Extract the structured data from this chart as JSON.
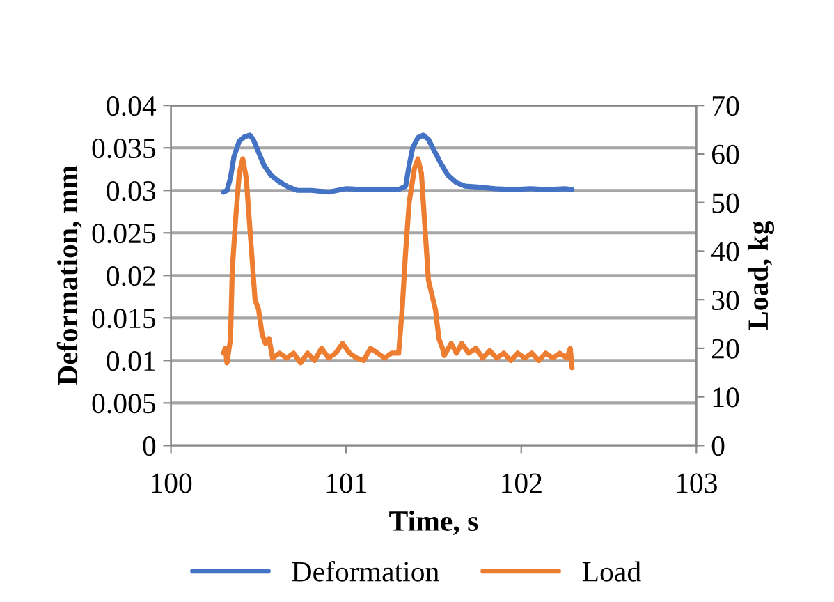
{
  "chart_data": {
    "type": "line",
    "xlabel": "Time, s",
    "ylabel": "Deformation, mm",
    "y2label": "Load, kg",
    "xlim": [
      100,
      103
    ],
    "xticks": [
      100,
      101,
      102,
      103
    ],
    "ylim": [
      0,
      0.04
    ],
    "yticks": [
      0,
      0.005,
      0.01,
      0.015,
      0.02,
      0.025,
      0.03,
      0.035,
      0.04
    ],
    "y2lim": [
      0,
      70
    ],
    "y2ticks": [
      0,
      10,
      20,
      30,
      40,
      50,
      60,
      70
    ],
    "grid": "y",
    "legend": "bottom",
    "marker": "none",
    "line_style": "solid",
    "series": [
      {
        "name": "Deformation",
        "color": "#4472c4",
        "x": [
          100.3,
          100.32,
          100.34,
          100.36,
          100.39,
          100.42,
          100.45,
          100.47,
          100.5,
          100.53,
          100.57,
          100.62,
          100.67,
          100.72,
          100.8,
          100.9,
          101.0,
          101.1,
          101.2,
          101.3,
          101.34,
          101.36,
          101.38,
          101.41,
          101.44,
          101.47,
          101.5,
          101.54,
          101.58,
          101.63,
          101.68,
          101.75,
          101.85,
          101.95,
          102.05,
          102.15,
          102.25,
          102.29
        ],
        "values": [
          0.0298,
          0.03,
          0.0315,
          0.034,
          0.0358,
          0.0363,
          0.0365,
          0.036,
          0.0345,
          0.033,
          0.0318,
          0.031,
          0.0304,
          0.03,
          0.03,
          0.0298,
          0.0302,
          0.0301,
          0.0301,
          0.0301,
          0.0305,
          0.033,
          0.035,
          0.0362,
          0.0365,
          0.036,
          0.0348,
          0.0332,
          0.0318,
          0.0309,
          0.0305,
          0.0304,
          0.0302,
          0.0301,
          0.0302,
          0.0301,
          0.0302,
          0.0301
        ]
      },
      {
        "name": "Load",
        "color": "#ed7d31",
        "axis": "y2",
        "x": [
          100.3,
          100.31,
          100.32,
          100.34,
          100.35,
          100.37,
          100.39,
          100.41,
          100.43,
          100.46,
          100.48,
          100.5,
          100.52,
          100.54,
          100.56,
          100.58,
          100.62,
          100.66,
          100.7,
          100.74,
          100.78,
          100.82,
          100.86,
          100.9,
          100.94,
          100.98,
          101.02,
          101.06,
          101.1,
          101.14,
          101.18,
          101.22,
          101.26,
          101.3,
          101.32,
          101.34,
          101.36,
          101.39,
          101.41,
          101.43,
          101.45,
          101.47,
          101.49,
          101.51,
          101.53,
          101.55,
          101.56,
          101.6,
          101.63,
          101.66,
          101.7,
          101.74,
          101.78,
          101.82,
          101.86,
          101.9,
          101.94,
          101.98,
          102.02,
          102.06,
          102.1,
          102.14,
          102.18,
          102.22,
          102.26,
          102.28,
          102.29
        ],
        "values": [
          19,
          20,
          17,
          22,
          36,
          47,
          56,
          59,
          55,
          40,
          30,
          28,
          23,
          21,
          22,
          18,
          19,
          18,
          19,
          17,
          19,
          17.5,
          20,
          18,
          19,
          21,
          19,
          18,
          17.5,
          20,
          19,
          18,
          19,
          19,
          28,
          40,
          50,
          57,
          59,
          56,
          45,
          34,
          31,
          28,
          22,
          20,
          18.5,
          21,
          19,
          21,
          19,
          20,
          18,
          19.5,
          18,
          19,
          17.5,
          19,
          18,
          19,
          17.5,
          19,
          18,
          19,
          18,
          20,
          16
        ]
      }
    ]
  }
}
